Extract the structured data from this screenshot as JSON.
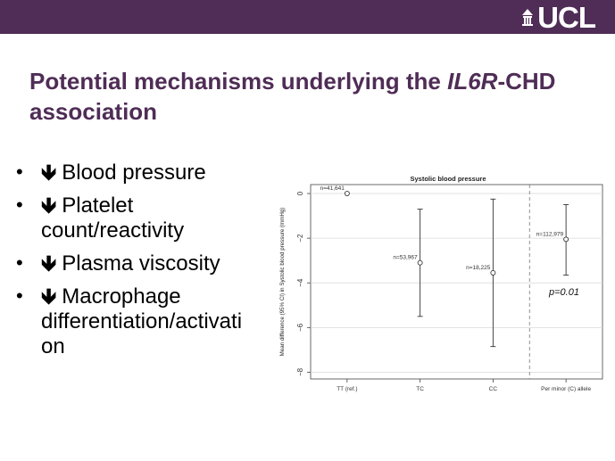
{
  "header": {
    "logo_text": "UCL",
    "bar_color": "#4f2d56"
  },
  "slide": {
    "title_part1": "Potential mechanisms underlying the ",
    "title_italic": "IL6R",
    "title_part2": "-CHD association",
    "bullets": [
      {
        "arrow": "🡻",
        "text": "Blood pressure"
      },
      {
        "arrow": "🡻",
        "text": "Platelet count/reactivity"
      },
      {
        "arrow": "🡻",
        "text": "Plasma viscosity"
      },
      {
        "arrow": "🡻",
        "text": "Macrophage differentiation/activati on"
      }
    ],
    "bullet_char": "•"
  },
  "chart_data": {
    "type": "scatter",
    "title": "Systolic blood pressure",
    "ylabel": "Mean difference (95% CI) in Systolic blood pressure (mmHg)",
    "xlabel": "",
    "categories": [
      "TT (ref.)",
      "TC",
      "CC",
      "Per minor (C) allele"
    ],
    "ylim": [
      -8.3,
      0.4
    ],
    "yticks": [
      0,
      -2,
      -4,
      -6,
      -8
    ],
    "ytick_labels": [
      "0",
      "−2",
      "−4",
      "−6",
      "−8"
    ],
    "grid": true,
    "points": [
      {
        "category": "TT (ref.)",
        "estimate": 0,
        "lower": 0,
        "upper": 0,
        "n_label": "n=41,641"
      },
      {
        "category": "TC",
        "estimate": -3.1,
        "lower": -5.5,
        "upper": -0.7,
        "n_label": "n=53,967"
      },
      {
        "category": "CC",
        "estimate": -3.55,
        "lower": -6.85,
        "upper": -0.25,
        "n_label": "n=18,225"
      },
      {
        "category": "Per minor (C) allele",
        "estimate": -2.05,
        "lower": -3.65,
        "upper": -0.5,
        "n_label": "n=112,979"
      }
    ],
    "annotation": "p=0.01",
    "separator_after_category": "CC"
  }
}
